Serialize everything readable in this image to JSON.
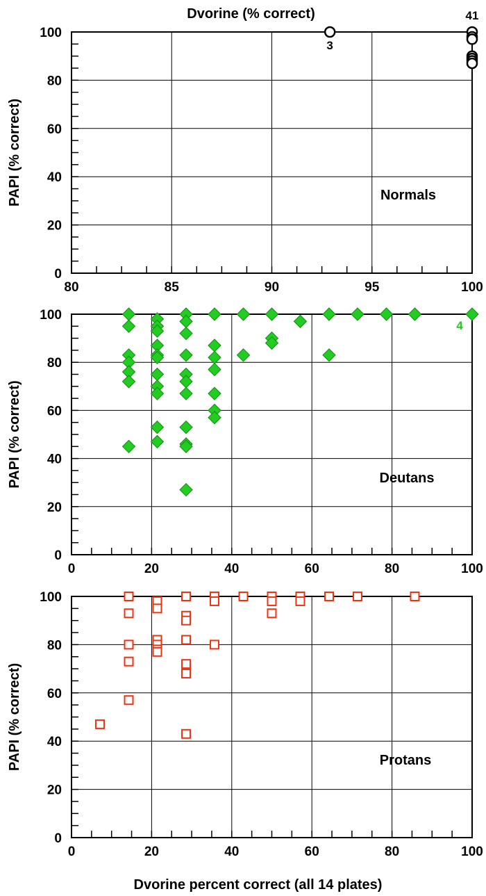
{
  "chart_data": [
    {
      "type": "scatter",
      "panel": "Normals",
      "title": "Dvorine (% correct)",
      "xlabel": "",
      "ylabel": "PAPI (% correct)",
      "xlim": [
        80,
        100
      ],
      "ylim": [
        0,
        100
      ],
      "xticks": [
        80,
        85,
        90,
        95,
        100
      ],
      "yticks": [
        0,
        20,
        40,
        60,
        80,
        100
      ],
      "grid": true,
      "panel_label": "Normals",
      "marker": "circle",
      "color": "#000000",
      "points": [
        {
          "x": 92.9,
          "y": 100
        },
        {
          "x": 100,
          "y": 100
        },
        {
          "x": 100,
          "y": 98
        },
        {
          "x": 100,
          "y": 97
        },
        {
          "x": 100,
          "y": 90
        },
        {
          "x": 100,
          "y": 89
        },
        {
          "x": 100,
          "y": 88
        },
        {
          "x": 100,
          "y": 87
        }
      ],
      "annotations": [
        {
          "text": "3",
          "x": 92.9,
          "y": 100
        },
        {
          "text": "41",
          "x": 100,
          "y": 100
        }
      ]
    },
    {
      "type": "scatter",
      "panel": "Deutans",
      "xlabel": "",
      "ylabel": "PAPI (% correct)",
      "xlim": [
        0,
        100
      ],
      "ylim": [
        0,
        100
      ],
      "xticks": [
        0,
        20,
        40,
        60,
        80,
        100
      ],
      "yticks": [
        0,
        20,
        40,
        60,
        80,
        100
      ],
      "grid": true,
      "panel_label": "Deutans",
      "marker": "diamond",
      "color": "#22cc22",
      "points": [
        {
          "x": 14.3,
          "y": 100
        },
        {
          "x": 14.3,
          "y": 95
        },
        {
          "x": 14.3,
          "y": 83
        },
        {
          "x": 14.3,
          "y": 80
        },
        {
          "x": 14.3,
          "y": 76
        },
        {
          "x": 14.3,
          "y": 72
        },
        {
          "x": 14.3,
          "y": 45
        },
        {
          "x": 21.4,
          "y": 98
        },
        {
          "x": 21.4,
          "y": 95
        },
        {
          "x": 21.4,
          "y": 93
        },
        {
          "x": 21.4,
          "y": 87
        },
        {
          "x": 21.4,
          "y": 83
        },
        {
          "x": 21.4,
          "y": 82
        },
        {
          "x": 21.4,
          "y": 75
        },
        {
          "x": 21.4,
          "y": 70
        },
        {
          "x": 21.4,
          "y": 67
        },
        {
          "x": 21.4,
          "y": 53
        },
        {
          "x": 21.4,
          "y": 47
        },
        {
          "x": 28.6,
          "y": 100
        },
        {
          "x": 28.6,
          "y": 97
        },
        {
          "x": 28.6,
          "y": 92
        },
        {
          "x": 28.6,
          "y": 83
        },
        {
          "x": 28.6,
          "y": 75
        },
        {
          "x": 28.6,
          "y": 72
        },
        {
          "x": 28.6,
          "y": 67
        },
        {
          "x": 28.6,
          "y": 53
        },
        {
          "x": 28.6,
          "y": 46
        },
        {
          "x": 28.6,
          "y": 45
        },
        {
          "x": 28.6,
          "y": 27
        },
        {
          "x": 35.7,
          "y": 100
        },
        {
          "x": 35.7,
          "y": 87
        },
        {
          "x": 35.7,
          "y": 82
        },
        {
          "x": 35.7,
          "y": 77
        },
        {
          "x": 35.7,
          "y": 67
        },
        {
          "x": 35.7,
          "y": 60
        },
        {
          "x": 35.7,
          "y": 57
        },
        {
          "x": 42.9,
          "y": 100
        },
        {
          "x": 42.9,
          "y": 83
        },
        {
          "x": 50,
          "y": 100
        },
        {
          "x": 50,
          "y": 90
        },
        {
          "x": 50,
          "y": 88
        },
        {
          "x": 57.1,
          "y": 97
        },
        {
          "x": 64.3,
          "y": 100
        },
        {
          "x": 64.3,
          "y": 83
        },
        {
          "x": 71.4,
          "y": 100
        },
        {
          "x": 78.6,
          "y": 100
        },
        {
          "x": 85.7,
          "y": 100
        },
        {
          "x": 100,
          "y": 100
        }
      ],
      "annotations": [
        {
          "text": "4",
          "x": 100,
          "y": 100
        }
      ]
    },
    {
      "type": "scatter",
      "panel": "Protans",
      "xlabel": "Dvorine percent correct (all 14 plates)",
      "ylabel": "PAPI (% correct)",
      "xlim": [
        0,
        100
      ],
      "ylim": [
        0,
        100
      ],
      "xticks": [
        0,
        20,
        40,
        60,
        80,
        100
      ],
      "yticks": [
        0,
        20,
        40,
        60,
        80,
        100
      ],
      "grid": true,
      "panel_label": "Protans",
      "marker": "square-open",
      "color": "#ee3311",
      "points": [
        {
          "x": 7.1,
          "y": 47
        },
        {
          "x": 14.3,
          "y": 100
        },
        {
          "x": 14.3,
          "y": 93
        },
        {
          "x": 14.3,
          "y": 80
        },
        {
          "x": 14.3,
          "y": 73
        },
        {
          "x": 14.3,
          "y": 57
        },
        {
          "x": 21.4,
          "y": 98
        },
        {
          "x": 21.4,
          "y": 95
        },
        {
          "x": 21.4,
          "y": 82
        },
        {
          "x": 21.4,
          "y": 80
        },
        {
          "x": 21.4,
          "y": 78
        },
        {
          "x": 21.4,
          "y": 77
        },
        {
          "x": 28.6,
          "y": 100
        },
        {
          "x": 28.6,
          "y": 92
        },
        {
          "x": 28.6,
          "y": 90
        },
        {
          "x": 28.6,
          "y": 82
        },
        {
          "x": 28.6,
          "y": 72
        },
        {
          "x": 28.6,
          "y": 68
        },
        {
          "x": 28.6,
          "y": 43
        },
        {
          "x": 35.7,
          "y": 100
        },
        {
          "x": 35.7,
          "y": 98
        },
        {
          "x": 35.7,
          "y": 80
        },
        {
          "x": 42.9,
          "y": 100
        },
        {
          "x": 50,
          "y": 100
        },
        {
          "x": 50,
          "y": 98
        },
        {
          "x": 50,
          "y": 93
        },
        {
          "x": 57.1,
          "y": 100
        },
        {
          "x": 57.1,
          "y": 98
        },
        {
          "x": 64.3,
          "y": 100
        },
        {
          "x": 71.4,
          "y": 100
        },
        {
          "x": 85.7,
          "y": 100
        }
      ],
      "annotations": []
    }
  ]
}
